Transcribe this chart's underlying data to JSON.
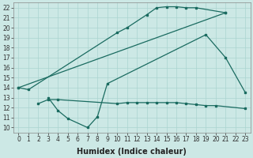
{
  "bg_color": "#cce8e5",
  "grid_color": "#aad4d0",
  "line_color": "#1a6b60",
  "line_width": 0.9,
  "marker": "s",
  "marker_size": 1.8,
  "xlabel": "Humidex (Indice chaleur)",
  "xlabel_fontsize": 7,
  "tick_fontsize": 5.5,
  "xlim": [
    -0.5,
    23.5
  ],
  "ylim": [
    9.5,
    22.5
  ],
  "yticks": [
    10,
    11,
    12,
    13,
    14,
    15,
    16,
    17,
    18,
    19,
    20,
    21,
    22
  ],
  "xticks": [
    0,
    1,
    2,
    3,
    4,
    5,
    6,
    7,
    8,
    9,
    10,
    11,
    12,
    13,
    14,
    15,
    16,
    17,
    18,
    19,
    20,
    21,
    22,
    23
  ],
  "line1_x": [
    0,
    1,
    10,
    11,
    13,
    14,
    15,
    16,
    17,
    18,
    21
  ],
  "line1_y": [
    14.0,
    13.8,
    19.5,
    20.0,
    21.3,
    22.0,
    22.1,
    22.1,
    22.0,
    22.0,
    21.5
  ],
  "line2_x": [
    0,
    21
  ],
  "line2_y": [
    14.0,
    21.5
  ],
  "line3_x": [
    2,
    3,
    4,
    10,
    11,
    12,
    13,
    14,
    15,
    16,
    17,
    18,
    19,
    20,
    23
  ],
  "line3_y": [
    12.4,
    12.8,
    12.8,
    12.4,
    12.5,
    12.5,
    12.5,
    12.5,
    12.5,
    12.5,
    12.4,
    12.3,
    12.2,
    12.2,
    11.9
  ],
  "line4_x": [
    3,
    4,
    5,
    7,
    8,
    9,
    19,
    21,
    23
  ],
  "line4_y": [
    13.0,
    11.7,
    10.9,
    10.0,
    11.1,
    14.4,
    19.3,
    17.0,
    13.5
  ]
}
